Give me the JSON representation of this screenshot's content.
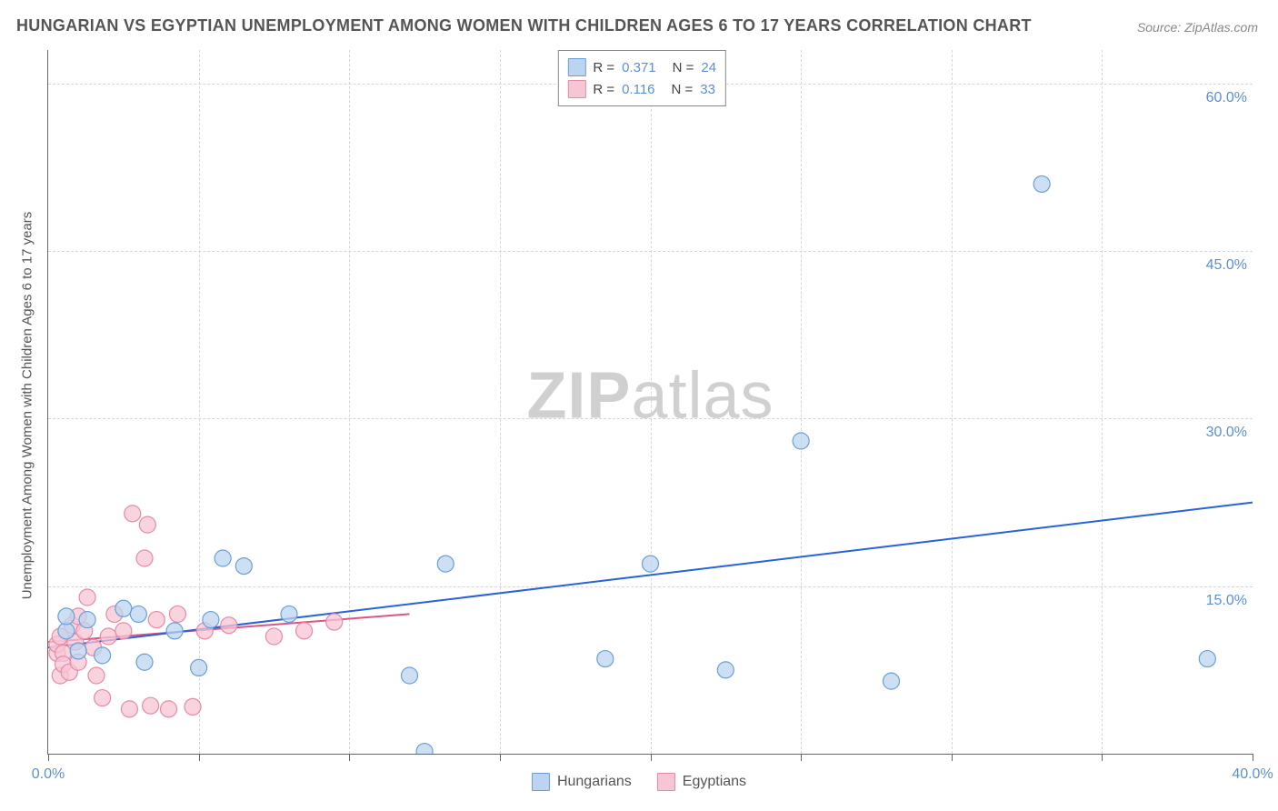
{
  "title": "HUNGARIAN VS EGYPTIAN UNEMPLOYMENT AMONG WOMEN WITH CHILDREN AGES 6 TO 17 YEARS CORRELATION CHART",
  "source": "Source: ZipAtlas.com",
  "y_axis_label": "Unemployment Among Women with Children Ages 6 to 17 years",
  "watermark_a": "ZIP",
  "watermark_b": "atlas",
  "chart": {
    "type": "scatter",
    "background_color": "#ffffff",
    "grid_color": "#d6d6d6",
    "axis_color": "#666666",
    "tick_label_color": "#5b8fd6",
    "xlim": [
      0,
      40
    ],
    "ylim": [
      0,
      63
    ],
    "x_ticks": [
      0,
      5,
      10,
      15,
      20,
      25,
      30,
      35,
      40
    ],
    "x_tick_labels": {
      "0": "0.0%",
      "40": "40.0%"
    },
    "y_ticks": [
      15,
      30,
      45,
      60
    ],
    "y_tick_labels": {
      "15": "15.0%",
      "30": "30.0%",
      "45": "45.0%",
      "60": "60.0%"
    },
    "marker_radius": 9,
    "marker_stroke_width": 1.2,
    "trend_line_width": 2,
    "tick_label_fontsize": 16
  },
  "legend_top": {
    "rows": [
      {
        "swatch_fill": "#bcd4ef",
        "swatch_stroke": "#6a9fd8",
        "r_label": "R =",
        "r_value": "0.371",
        "n_label": "N =",
        "n_value": "24"
      },
      {
        "swatch_fill": "#f7c6d4",
        "swatch_stroke": "#e68aa6",
        "r_label": "R =",
        "r_value": "0.116",
        "n_label": "N =",
        "n_value": "33"
      }
    ]
  },
  "legend_bottom": {
    "items": [
      {
        "swatch_fill": "#bcd4ef",
        "swatch_stroke": "#6a9fd8",
        "label": "Hungarians"
      },
      {
        "swatch_fill": "#f7c6d4",
        "swatch_stroke": "#e68aa6",
        "label": "Egyptians"
      }
    ]
  },
  "series": [
    {
      "name": "Hungarians",
      "fill": "#bcd4ef",
      "stroke": "#6a9fd8",
      "trend_color": "#2962d9",
      "trend": {
        "x1": 0,
        "y1": 9.5,
        "x2": 40,
        "y2": 22.5
      },
      "points": [
        [
          0.6,
          11.0
        ],
        [
          0.6,
          12.3
        ],
        [
          1.0,
          9.2
        ],
        [
          1.3,
          12.0
        ],
        [
          1.8,
          8.8
        ],
        [
          2.5,
          13.0
        ],
        [
          3.0,
          12.5
        ],
        [
          3.2,
          8.2
        ],
        [
          4.2,
          11.0
        ],
        [
          5.0,
          7.7
        ],
        [
          5.4,
          12.0
        ],
        [
          5.8,
          17.5
        ],
        [
          6.5,
          16.8
        ],
        [
          8.0,
          12.5
        ],
        [
          12.0,
          7.0
        ],
        [
          12.5,
          0.2
        ],
        [
          13.2,
          17.0
        ],
        [
          18.5,
          8.5
        ],
        [
          20.0,
          17.0
        ],
        [
          22.5,
          7.5
        ],
        [
          25.0,
          28.0
        ],
        [
          28.0,
          6.5
        ],
        [
          33.0,
          51.0
        ],
        [
          38.5,
          8.5
        ]
      ]
    },
    {
      "name": "Egyptians",
      "fill": "#f7c6d4",
      "stroke": "#e68aa6",
      "trend_color": "#e05580",
      "trend": {
        "x1": 0,
        "y1": 10.0,
        "x2": 12,
        "y2": 12.5
      },
      "points": [
        [
          0.3,
          9.0
        ],
        [
          0.3,
          9.8
        ],
        [
          0.4,
          7.0
        ],
        [
          0.4,
          10.5
        ],
        [
          0.5,
          9.0
        ],
        [
          0.5,
          8.0
        ],
        [
          0.7,
          7.3
        ],
        [
          0.8,
          11.5
        ],
        [
          0.9,
          10.0
        ],
        [
          1.0,
          12.3
        ],
        [
          1.0,
          8.2
        ],
        [
          1.2,
          11.0
        ],
        [
          1.3,
          14.0
        ],
        [
          1.5,
          9.5
        ],
        [
          1.6,
          7.0
        ],
        [
          1.8,
          5.0
        ],
        [
          2.0,
          10.5
        ],
        [
          2.2,
          12.5
        ],
        [
          2.5,
          11.0
        ],
        [
          2.7,
          4.0
        ],
        [
          2.8,
          21.5
        ],
        [
          3.2,
          17.5
        ],
        [
          3.3,
          20.5
        ],
        [
          3.4,
          4.3
        ],
        [
          3.6,
          12.0
        ],
        [
          4.0,
          4.0
        ],
        [
          4.3,
          12.5
        ],
        [
          4.8,
          4.2
        ],
        [
          5.2,
          11.0
        ],
        [
          6.0,
          11.5
        ],
        [
          7.5,
          10.5
        ],
        [
          8.5,
          11.0
        ],
        [
          9.5,
          11.8
        ]
      ]
    }
  ]
}
